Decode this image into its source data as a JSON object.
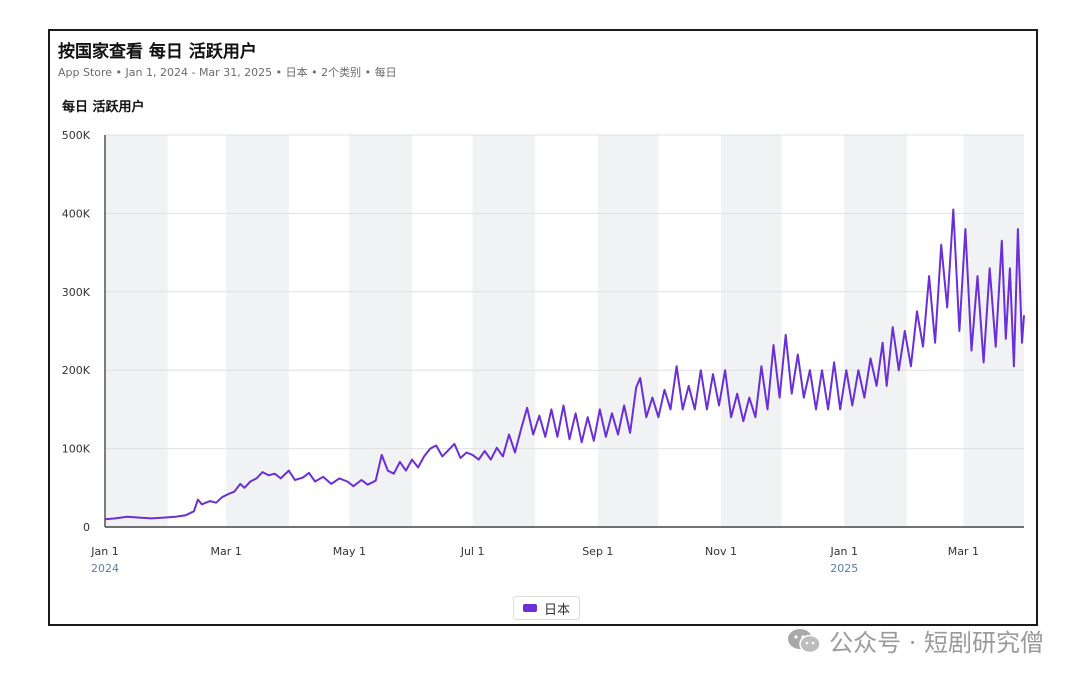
{
  "header": {
    "title": "按国家查看 每日 活跃用户",
    "subtitle": "App Store • Jan 1, 2024 - Mar 31, 2025 • 日本 • 2个类别 • 每日",
    "metric_label": "每日 活跃用户"
  },
  "watermark": {
    "text": "公众号 · 短剧研究僧",
    "icon": "wechat-icon"
  },
  "colors": {
    "series": "#6a2fd6",
    "band": "#f1f2f4",
    "grid": "#e0e0e0",
    "axis": "#444444"
  },
  "chart_data": {
    "type": "line",
    "title": "按国家查看 每日 活跃用户",
    "xlabel": "",
    "ylabel": "每日 活跃用户",
    "ylim": [
      0,
      500000
    ],
    "y_ticks": [
      {
        "value": 0,
        "label": "0"
      },
      {
        "value": 100000,
        "label": "100K"
      },
      {
        "value": 200000,
        "label": "200K"
      },
      {
        "value": 300000,
        "label": "300K"
      },
      {
        "value": 400000,
        "label": "400K"
      },
      {
        "value": 500000,
        "label": "500K"
      }
    ],
    "x_range": [
      "2024-01-01",
      "2025-03-31"
    ],
    "x_ticks": [
      {
        "date": "2024-01-01",
        "label": "Jan 1",
        "year": "2024"
      },
      {
        "date": "2024-03-01",
        "label": "Mar 1"
      },
      {
        "date": "2024-05-01",
        "label": "May 1"
      },
      {
        "date": "2024-07-01",
        "label": "Jul 1"
      },
      {
        "date": "2024-09-01",
        "label": "Sep 1"
      },
      {
        "date": "2024-11-01",
        "label": "Nov 1"
      },
      {
        "date": "2025-01-01",
        "label": "Jan 1",
        "year": "2025"
      },
      {
        "date": "2025-03-01",
        "label": "Mar 1"
      }
    ],
    "month_starts": [
      "2024-01-01",
      "2024-02-01",
      "2024-03-01",
      "2024-04-01",
      "2024-05-01",
      "2024-06-01",
      "2024-07-01",
      "2024-08-01",
      "2024-09-01",
      "2024-10-01",
      "2024-11-01",
      "2024-12-01",
      "2025-01-01",
      "2025-02-01",
      "2025-03-01",
      "2025-04-01"
    ],
    "legend": [
      {
        "name": "日本",
        "color": "#6a2fd6"
      }
    ],
    "series": [
      {
        "name": "日本",
        "points": [
          [
            "2024-01-01",
            10000
          ],
          [
            "2024-01-06",
            11000
          ],
          [
            "2024-01-12",
            13000
          ],
          [
            "2024-01-18",
            12000
          ],
          [
            "2024-01-24",
            11000
          ],
          [
            "2024-01-30",
            12000
          ],
          [
            "2024-02-05",
            13000
          ],
          [
            "2024-02-10",
            15000
          ],
          [
            "2024-02-14",
            20000
          ],
          [
            "2024-02-16",
            35000
          ],
          [
            "2024-02-18",
            29000
          ],
          [
            "2024-02-22",
            33000
          ],
          [
            "2024-02-25",
            31000
          ],
          [
            "2024-02-28",
            38000
          ],
          [
            "2024-03-02",
            42000
          ],
          [
            "2024-03-05",
            45000
          ],
          [
            "2024-03-08",
            55000
          ],
          [
            "2024-03-10",
            50000
          ],
          [
            "2024-03-13",
            58000
          ],
          [
            "2024-03-16",
            62000
          ],
          [
            "2024-03-19",
            70000
          ],
          [
            "2024-03-22",
            66000
          ],
          [
            "2024-03-25",
            68000
          ],
          [
            "2024-03-28",
            62000
          ],
          [
            "2024-04-01",
            72000
          ],
          [
            "2024-04-04",
            60000
          ],
          [
            "2024-04-08",
            63000
          ],
          [
            "2024-04-11",
            69000
          ],
          [
            "2024-04-14",
            58000
          ],
          [
            "2024-04-18",
            64000
          ],
          [
            "2024-04-22",
            55000
          ],
          [
            "2024-04-26",
            62000
          ],
          [
            "2024-04-30",
            58000
          ],
          [
            "2024-05-03",
            52000
          ],
          [
            "2024-05-07",
            60000
          ],
          [
            "2024-05-10",
            54000
          ],
          [
            "2024-05-14",
            59000
          ],
          [
            "2024-05-17",
            92000
          ],
          [
            "2024-05-20",
            72000
          ],
          [
            "2024-05-23",
            68000
          ],
          [
            "2024-05-26",
            83000
          ],
          [
            "2024-05-29",
            72000
          ],
          [
            "2024-06-01",
            86000
          ],
          [
            "2024-06-04",
            76000
          ],
          [
            "2024-06-07",
            90000
          ],
          [
            "2024-06-10",
            100000
          ],
          [
            "2024-06-13",
            104000
          ],
          [
            "2024-06-16",
            90000
          ],
          [
            "2024-06-19",
            98000
          ],
          [
            "2024-06-22",
            106000
          ],
          [
            "2024-06-25",
            88000
          ],
          [
            "2024-06-28",
            95000
          ],
          [
            "2024-07-01",
            92000
          ],
          [
            "2024-07-04",
            86000
          ],
          [
            "2024-07-07",
            97000
          ],
          [
            "2024-07-10",
            86000
          ],
          [
            "2024-07-13",
            101000
          ],
          [
            "2024-07-16",
            90000
          ],
          [
            "2024-07-19",
            118000
          ],
          [
            "2024-07-22",
            95000
          ],
          [
            "2024-07-25",
            125000
          ],
          [
            "2024-07-28",
            152000
          ],
          [
            "2024-07-31",
            118000
          ],
          [
            "2024-08-03",
            142000
          ],
          [
            "2024-08-06",
            115000
          ],
          [
            "2024-08-09",
            150000
          ],
          [
            "2024-08-12",
            115000
          ],
          [
            "2024-08-15",
            155000
          ],
          [
            "2024-08-18",
            112000
          ],
          [
            "2024-08-21",
            145000
          ],
          [
            "2024-08-24",
            108000
          ],
          [
            "2024-08-27",
            140000
          ],
          [
            "2024-08-30",
            110000
          ],
          [
            "2024-09-02",
            150000
          ],
          [
            "2024-09-05",
            115000
          ],
          [
            "2024-09-08",
            145000
          ],
          [
            "2024-09-11",
            118000
          ],
          [
            "2024-09-14",
            155000
          ],
          [
            "2024-09-17",
            120000
          ],
          [
            "2024-09-20",
            178000
          ],
          [
            "2024-09-22",
            190000
          ],
          [
            "2024-09-25",
            140000
          ],
          [
            "2024-09-28",
            165000
          ],
          [
            "2024-10-01",
            140000
          ],
          [
            "2024-10-04",
            175000
          ],
          [
            "2024-10-07",
            150000
          ],
          [
            "2024-10-10",
            205000
          ],
          [
            "2024-10-13",
            150000
          ],
          [
            "2024-10-16",
            180000
          ],
          [
            "2024-10-19",
            150000
          ],
          [
            "2024-10-22",
            200000
          ],
          [
            "2024-10-25",
            150000
          ],
          [
            "2024-10-28",
            195000
          ],
          [
            "2024-10-31",
            155000
          ],
          [
            "2024-11-03",
            200000
          ],
          [
            "2024-11-06",
            140000
          ],
          [
            "2024-11-09",
            170000
          ],
          [
            "2024-11-12",
            135000
          ],
          [
            "2024-11-15",
            165000
          ],
          [
            "2024-11-18",
            140000
          ],
          [
            "2024-11-21",
            205000
          ],
          [
            "2024-11-24",
            150000
          ],
          [
            "2024-11-27",
            232000
          ],
          [
            "2024-11-30",
            165000
          ],
          [
            "2024-12-03",
            245000
          ],
          [
            "2024-12-06",
            170000
          ],
          [
            "2024-12-09",
            220000
          ],
          [
            "2024-12-12",
            165000
          ],
          [
            "2024-12-15",
            200000
          ],
          [
            "2024-12-18",
            150000
          ],
          [
            "2024-12-21",
            200000
          ],
          [
            "2024-12-24",
            150000
          ],
          [
            "2024-12-27",
            210000
          ],
          [
            "2024-12-30",
            150000
          ],
          [
            "2025-01-02",
            200000
          ],
          [
            "2025-01-05",
            155000
          ],
          [
            "2025-01-08",
            200000
          ],
          [
            "2025-01-11",
            165000
          ],
          [
            "2025-01-14",
            215000
          ],
          [
            "2025-01-17",
            180000
          ],
          [
            "2025-01-20",
            235000
          ],
          [
            "2025-01-22",
            180000
          ],
          [
            "2025-01-25",
            255000
          ],
          [
            "2025-01-28",
            200000
          ],
          [
            "2025-01-31",
            250000
          ],
          [
            "2025-02-03",
            205000
          ],
          [
            "2025-02-06",
            275000
          ],
          [
            "2025-02-09",
            230000
          ],
          [
            "2025-02-12",
            320000
          ],
          [
            "2025-02-15",
            235000
          ],
          [
            "2025-02-18",
            360000
          ],
          [
            "2025-02-21",
            280000
          ],
          [
            "2025-02-24",
            405000
          ],
          [
            "2025-02-27",
            250000
          ],
          [
            "2025-03-02",
            380000
          ],
          [
            "2025-03-05",
            225000
          ],
          [
            "2025-03-08",
            320000
          ],
          [
            "2025-03-11",
            210000
          ],
          [
            "2025-03-14",
            330000
          ],
          [
            "2025-03-17",
            230000
          ],
          [
            "2025-03-20",
            365000
          ],
          [
            "2025-03-22",
            240000
          ],
          [
            "2025-03-24",
            330000
          ],
          [
            "2025-03-26",
            205000
          ],
          [
            "2025-03-28",
            380000
          ],
          [
            "2025-03-30",
            235000
          ],
          [
            "2025-03-31",
            270000
          ]
        ]
      }
    ]
  }
}
